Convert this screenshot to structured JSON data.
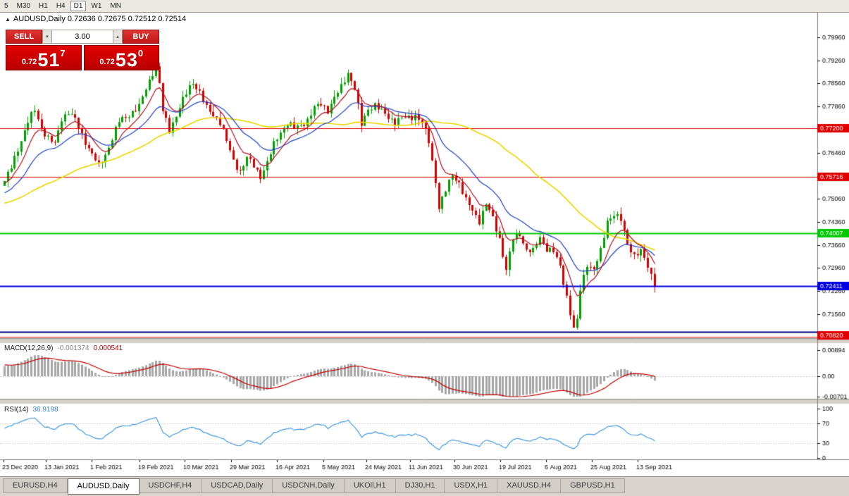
{
  "icons": {
    "chart_arrow": "▲",
    "spinner_up": "▴",
    "spinner_down": "▾"
  },
  "toolbar": {
    "timeframes": [
      {
        "label": "5",
        "active": false
      },
      {
        "label": "M30",
        "active": false
      },
      {
        "label": "H1",
        "active": false
      },
      {
        "label": "H4",
        "active": false
      },
      {
        "label": "D1",
        "active": true
      },
      {
        "label": "W1",
        "active": false
      },
      {
        "label": "MN",
        "active": false
      }
    ]
  },
  "chart_header": {
    "symbol_info": "AUDUSD,Daily 0.72636 0.72675 0.72512 0.72514"
  },
  "trade_panel": {
    "sell_label": "SELL",
    "buy_label": "BUY",
    "volume": "3.00",
    "sell_price": {
      "prefix": "0.72",
      "main": "51",
      "sup": "7"
    },
    "buy_price": {
      "prefix": "0.72",
      "main": "53",
      "sup": "0"
    }
  },
  "indicators": {
    "macd_label": "MACD(12,26,9)",
    "macd_value_hist": "-0.001374",
    "macd_value_signal": "0.000541",
    "rsi_label": "RSI(14)",
    "rsi_value": "36.9198"
  },
  "tabs": [
    {
      "label": "EURUSD,H4",
      "active": false
    },
    {
      "label": "AUDUSD,Daily",
      "active": true
    },
    {
      "label": "USDCHF,H4",
      "active": false
    },
    {
      "label": "USDCAD,Daily",
      "active": false
    },
    {
      "label": "USDCNH,Daily",
      "active": false
    },
    {
      "label": "UKOil,H1",
      "active": false
    },
    {
      "label": "DJ30,H1",
      "active": false
    },
    {
      "label": "USDX,H1",
      "active": false
    },
    {
      "label": "XAUUSD,H4",
      "active": false
    },
    {
      "label": "GBPUSD,H1",
      "active": false
    }
  ],
  "chart_data": {
    "type": "candlestick",
    "symbol": "AUDUSD",
    "timeframe": "Daily",
    "ohlc_current": {
      "open": "0.72636",
      "high": "0.72675",
      "low": "0.72512",
      "close": "0.72514"
    },
    "price_axis_ticks": [
      "0.79960",
      "0.79260",
      "0.78560",
      "0.77860",
      "0.76460",
      "0.75060",
      "0.74360",
      "0.73660",
      "0.72960",
      "0.72260",
      "0.71560"
    ],
    "macd_axis_ticks": [
      "0.00894",
      "0.00",
      "-0.00701"
    ],
    "rsi_axis_ticks": [
      "100",
      "70",
      "30",
      "0"
    ],
    "rsi_guide_levels": [
      70,
      30
    ],
    "date_labels": [
      "23 Dec 2020",
      "13 Jan 2021",
      "1 Feb 2021",
      "19 Feb 2021",
      "10 Mar 2021",
      "29 Mar 2021",
      "16 Apr 2021",
      "5 May 2021",
      "24 May 2021",
      "11 Jun 2021",
      "30 Jun 2021",
      "19 Jul 2021",
      "6 Aug 2021",
      "25 Aug 2021",
      "13 Sep 2021"
    ],
    "date_x": [
      3,
      63,
      128,
      196,
      260,
      326,
      391,
      457,
      518,
      580,
      643,
      708,
      773,
      838,
      903
    ],
    "levels": [
      {
        "price": 0.772,
        "label": "0.77200",
        "color": "#e00000",
        "width": 1,
        "labeled": true
      },
      {
        "price": 0.75716,
        "label": "0.75716",
        "color": "#e00000",
        "width": 1,
        "labeled": true
      },
      {
        "price": 0.74007,
        "label": "0.74007",
        "color": "#00c800",
        "width": 2,
        "labeled": true
      },
      {
        "price": 0.72411,
        "label": "0.72411",
        "color": "#0000e0",
        "width": 2,
        "labeled": true
      },
      {
        "price": 0.7103,
        "label": "0.71030",
        "color": "#000080",
        "width": 2,
        "labeled": false
      },
      {
        "price": 0.7082,
        "label": "0.70820",
        "color": "#e00000",
        "width": 1,
        "labeled": true
      }
    ],
    "num_candles": 194,
    "price_keypoints": [
      [
        0,
        0.756
      ],
      [
        2,
        0.76
      ],
      [
        5,
        0.7685
      ],
      [
        7,
        0.774
      ],
      [
        9,
        0.7775
      ],
      [
        11,
        0.772
      ],
      [
        13,
        0.769
      ],
      [
        15,
        0.767
      ],
      [
        17,
        0.775
      ],
      [
        19,
        0.777
      ],
      [
        21,
        0.7745
      ],
      [
        23,
        0.77
      ],
      [
        25,
        0.766
      ],
      [
        28,
        0.7605
      ],
      [
        30,
        0.764
      ],
      [
        32,
        0.769
      ],
      [
        34,
        0.774
      ],
      [
        36,
        0.7755
      ],
      [
        38,
        0.777
      ],
      [
        40,
        0.7785
      ],
      [
        42,
        0.784
      ],
      [
        44,
        0.789
      ],
      [
        45,
        0.7905
      ],
      [
        46,
        0.7855
      ],
      [
        47,
        0.777
      ],
      [
        49,
        0.7715
      ],
      [
        51,
        0.776
      ],
      [
        53,
        0.7805
      ],
      [
        55,
        0.7845
      ],
      [
        56,
        0.786
      ],
      [
        58,
        0.783
      ],
      [
        60,
        0.778
      ],
      [
        62,
        0.776
      ],
      [
        64,
        0.774
      ],
      [
        66,
        0.768
      ],
      [
        68,
        0.762
      ],
      [
        70,
        0.759
      ],
      [
        72,
        0.763
      ],
      [
        74,
        0.7605
      ],
      [
        76,
        0.7575
      ],
      [
        78,
        0.7615
      ],
      [
        80,
        0.767
      ],
      [
        82,
        0.771
      ],
      [
        84,
        0.7735
      ],
      [
        86,
        0.772
      ],
      [
        88,
        0.773
      ],
      [
        90,
        0.7745
      ],
      [
        92,
        0.778
      ],
      [
        94,
        0.7795
      ],
      [
        96,
        0.7775
      ],
      [
        98,
        0.781
      ],
      [
        100,
        0.7845
      ],
      [
        102,
        0.789
      ],
      [
        104,
        0.784
      ],
      [
        106,
        0.773
      ],
      [
        108,
        0.778
      ],
      [
        110,
        0.779
      ],
      [
        112,
        0.777
      ],
      [
        114,
        0.7755
      ],
      [
        116,
        0.774
      ],
      [
        118,
        0.7748
      ],
      [
        120,
        0.7752
      ],
      [
        122,
        0.776
      ],
      [
        124,
        0.7735
      ],
      [
        126,
        0.768
      ],
      [
        128,
        0.756
      ],
      [
        129,
        0.748
      ],
      [
        131,
        0.753
      ],
      [
        133,
        0.758
      ],
      [
        135,
        0.7555
      ],
      [
        137,
        0.75
      ],
      [
        139,
        0.747
      ],
      [
        141,
        0.744
      ],
      [
        143,
        0.749
      ],
      [
        145,
        0.7445
      ],
      [
        147,
        0.7385
      ],
      [
        149,
        0.729
      ],
      [
        151,
        0.7385
      ],
      [
        153,
        0.74
      ],
      [
        155,
        0.735
      ],
      [
        157,
        0.7345
      ],
      [
        159,
        0.739
      ],
      [
        161,
        0.7355
      ],
      [
        163,
        0.7345
      ],
      [
        165,
        0.73
      ],
      [
        167,
        0.721
      ],
      [
        169,
        0.711
      ],
      [
        170,
        0.7135
      ],
      [
        171,
        0.723
      ],
      [
        173,
        0.731
      ],
      [
        175,
        0.729
      ],
      [
        177,
        0.7345
      ],
      [
        179,
        0.744
      ],
      [
        181,
        0.746
      ],
      [
        183,
        0.744
      ],
      [
        185,
        0.737
      ],
      [
        187,
        0.7335
      ],
      [
        189,
        0.7345
      ],
      [
        191,
        0.73
      ],
      [
        193,
        0.7251
      ]
    ],
    "colors": {
      "up": "#00a000",
      "down": "#d40000",
      "ma_fast": "#b01020",
      "ma_mid": "#2040c0",
      "ma_slow": "#e8d800",
      "macd_hist": "#a6a6a6",
      "macd_signal": "#c00000",
      "rsi": "#4499dd"
    }
  }
}
